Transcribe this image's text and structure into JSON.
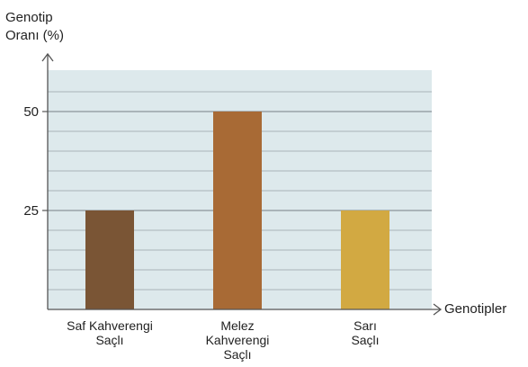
{
  "chart_data": {
    "type": "bar",
    "ylabel_lines": [
      "Genotip",
      "Oranı (%)"
    ],
    "xlabel": "Genotipler",
    "categories": [
      {
        "lines": [
          "Saf Kahverengi",
          "Saçlı"
        ],
        "value": 25,
        "color": "#7a5535"
      },
      {
        "lines": [
          "Melez",
          "Kahverengi",
          "Saçlı"
        ],
        "value": 50,
        "color": "#a86a35"
      },
      {
        "lines": [
          "Sarı",
          "Saçlı"
        ],
        "value": 25,
        "color": "#d2a942"
      }
    ],
    "yticks": [
      "25",
      "50"
    ],
    "ylim": [
      0,
      60
    ],
    "grid": true,
    "background_color": "#dde9ec",
    "grid_color": "#ffffff"
  }
}
